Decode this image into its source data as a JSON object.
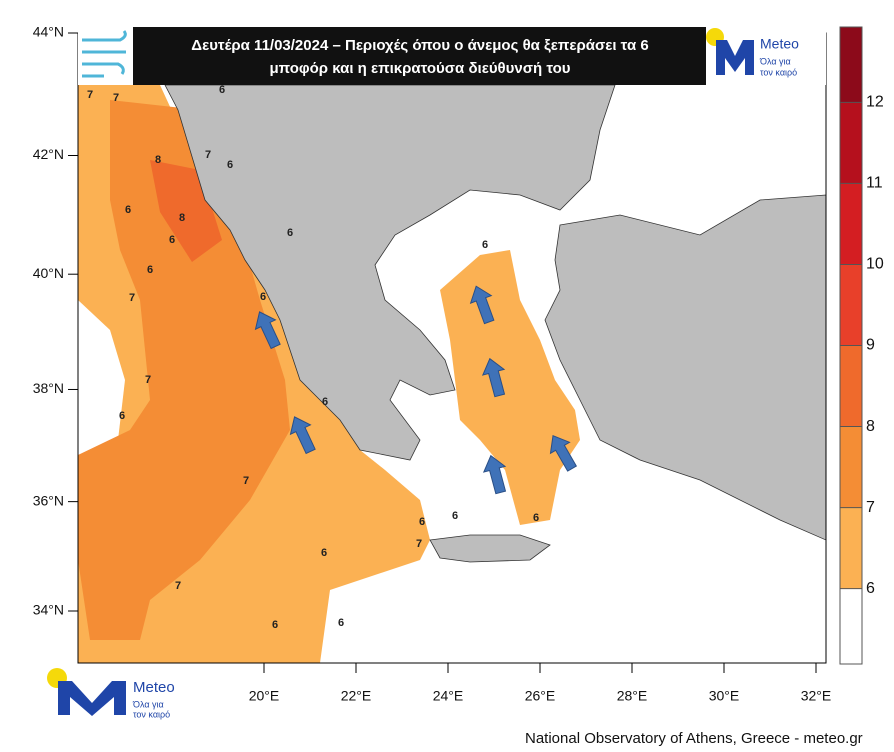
{
  "title": [
    "Δευτέρα 11/03/2024 – Περιοχές όπου ο άνεμος θα ξεπεράσει τα 6",
    "μποφόρ και η επικρατούσα διεύθυνσή του"
  ],
  "lat_labels": [
    {
      "value": 44,
      "label": "44°N"
    },
    {
      "value": 42,
      "label": "42°N"
    },
    {
      "value": 40,
      "label": "40°N"
    },
    {
      "value": 38,
      "label": "38°N"
    },
    {
      "value": 36,
      "label": "36°N"
    },
    {
      "value": 34,
      "label": "34°N"
    }
  ],
  "lon_labels": [
    {
      "value": 20,
      "label": "20°E"
    },
    {
      "value": 22,
      "label": "22°E"
    },
    {
      "value": 24,
      "label": "24°E"
    },
    {
      "value": 26,
      "label": "26°E"
    },
    {
      "value": 28,
      "label": "28°E"
    },
    {
      "value": 30,
      "label": "30°E"
    },
    {
      "value": 32,
      "label": "32°E"
    }
  ],
  "colorbar": {
    "ticks": [
      6,
      7,
      8,
      9,
      10,
      11,
      12
    ],
    "range": [
      5.07,
      12.93
    ],
    "colors": [
      "#ffffff",
      "#fbb153",
      "#f48d35",
      "#ef6a2c",
      "#e8402a",
      "#d41e22",
      "#b5101d",
      "#8c0a1a"
    ]
  },
  "contour_labels": [
    7,
    7,
    6,
    8,
    7,
    6,
    6,
    8,
    6,
    6,
    6,
    7,
    6,
    7,
    6,
    6,
    7,
    6,
    7,
    6,
    6,
    7,
    6,
    6,
    6,
    6
  ],
  "logo": {
    "name": "Meteo",
    "tagline": [
      "Όλα για",
      "τον καιρό"
    ]
  },
  "footer": "National Observatory of Athens, Greece - meteo.gr"
}
